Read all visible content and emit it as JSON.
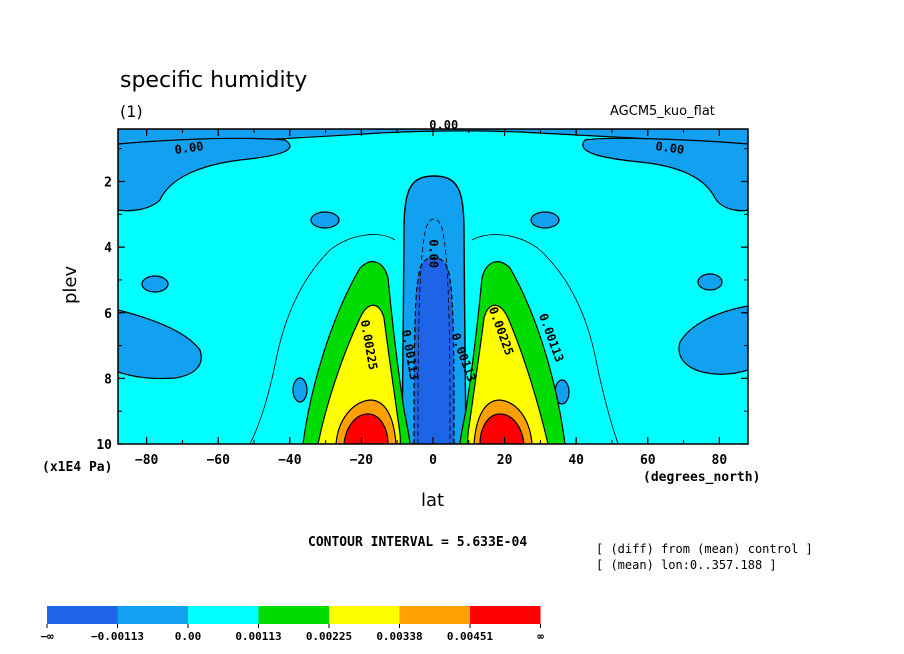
{
  "chart_data": {
    "type": "contour",
    "title": "specific humidity",
    "subtitle": "(1)",
    "experiment": "AGCM5_kuo_flat",
    "xlabel": "lat",
    "xunit": "(degrees_north)",
    "ylabel": "plev",
    "yunit": "(x1E4 Pa)",
    "xlim": [
      -88,
      88
    ],
    "ylim": [
      10,
      0.4
    ],
    "x_ticks": [
      "-80",
      "-60",
      "-40",
      "-20",
      "0",
      "20",
      "40",
      "60",
      "80"
    ],
    "x_tick_values": [
      -80,
      -60,
      -40,
      -20,
      0,
      20,
      40,
      60,
      80
    ],
    "y_ticks": [
      "2",
      "4",
      "6",
      "8",
      "10"
    ],
    "y_tick_values": [
      2,
      4,
      6,
      8,
      10
    ],
    "contour_interval": "CONTOUR INTERVAL = 5.633E-04",
    "notes": [
      "[ (diff) from (mean) control ]",
      "[ (mean) lon:0..357.188 ]"
    ],
    "contour_labels": [
      {
        "text": "0.00",
        "lat": 3,
        "p": 0.4
      },
      {
        "text": "0.00",
        "lat": -68,
        "p": 1.1
      },
      {
        "text": "0.00",
        "lat": 66,
        "p": 1.1
      },
      {
        "text": "0.00",
        "lat": -1,
        "p": 4.2
      },
      {
        "text": "0.00225",
        "lat": -19,
        "p": 7.0
      },
      {
        "text": "0.00113",
        "lat": -7.5,
        "p": 7.3
      },
      {
        "text": "0.00113",
        "lat": 7.5,
        "p": 7.4
      },
      {
        "text": "0.00225",
        "lat": 18,
        "p": 6.6
      },
      {
        "text": "0.00113",
        "lat": 32,
        "p": 6.8
      }
    ],
    "colorbar": {
      "levels": [
        "−∞",
        "−0.00113",
        "0.00",
        "0.00113",
        "0.00225",
        "0.00338",
        "0.00451",
        "∞"
      ],
      "colors": [
        "#1e64e6",
        "#12a0f0",
        "#00ffff",
        "#00dc00",
        "#ffff00",
        "#ffa000",
        "#ff0000"
      ]
    }
  }
}
